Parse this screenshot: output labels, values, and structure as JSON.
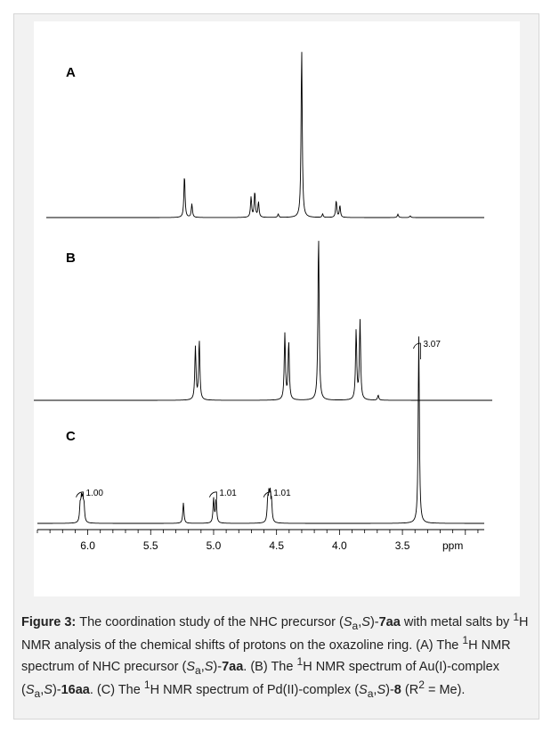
{
  "chart_data": [
    {
      "type": "line",
      "panel_label": "A",
      "x_range": [
        6.4,
        2.85
      ],
      "peaks": [
        {
          "ppm": 5.28,
          "height": 0.25
        },
        {
          "ppm": 5.22,
          "height": 0.08
        },
        {
          "ppm": 4.74,
          "height": 0.12
        },
        {
          "ppm": 4.71,
          "height": 0.15
        },
        {
          "ppm": 4.68,
          "height": 0.09
        },
        {
          "ppm": 4.52,
          "height": 0.02
        },
        {
          "ppm": 4.33,
          "height": 1.0
        },
        {
          "ppm": 4.16,
          "height": 0.02
        },
        {
          "ppm": 4.05,
          "height": 0.1
        },
        {
          "ppm": 4.02,
          "height": 0.07
        },
        {
          "ppm": 3.55,
          "height": 0.02
        },
        {
          "ppm": 3.45,
          "height": 0.01
        }
      ]
    },
    {
      "type": "line",
      "panel_label": "B",
      "x_range": [
        6.4,
        2.85
      ],
      "peaks": [
        {
          "ppm": 5.14,
          "height": 0.32
        },
        {
          "ppm": 5.11,
          "height": 0.36
        },
        {
          "ppm": 4.45,
          "height": 0.4
        },
        {
          "ppm": 4.42,
          "height": 0.35
        },
        {
          "ppm": 4.19,
          "height": 1.0
        },
        {
          "ppm": 3.9,
          "height": 0.42
        },
        {
          "ppm": 3.87,
          "height": 0.48
        },
        {
          "ppm": 3.73,
          "height": 0.03
        }
      ]
    },
    {
      "type": "line",
      "panel_label": "C",
      "x_range": [
        6.4,
        2.85
      ],
      "x_axis": {
        "ticks": [
          "6.0",
          "5.5",
          "5.0",
          "4.5",
          "4.0",
          "3.5"
        ],
        "unit": "ppm"
      },
      "peaks": [
        {
          "ppm": 6.06,
          "height": 0.09
        },
        {
          "ppm": 6.05,
          "height": 0.11
        },
        {
          "ppm": 6.04,
          "height": 0.11
        },
        {
          "ppm": 6.03,
          "height": 0.09
        },
        {
          "ppm": 5.24,
          "height": 0.11
        },
        {
          "ppm": 5.0,
          "height": 0.13
        },
        {
          "ppm": 4.98,
          "height": 0.13
        },
        {
          "ppm": 4.57,
          "height": 0.11
        },
        {
          "ppm": 4.56,
          "height": 0.13
        },
        {
          "ppm": 4.55,
          "height": 0.13
        },
        {
          "ppm": 4.54,
          "height": 0.1
        },
        {
          "ppm": 3.37,
          "height": 1.0
        }
      ],
      "integrals": [
        {
          "ppm": 6.05,
          "value": "1.00"
        },
        {
          "ppm": 4.99,
          "value": "1.01"
        },
        {
          "ppm": 4.56,
          "value": "1.01"
        },
        {
          "ppm": 3.37,
          "value": "3.07"
        }
      ]
    }
  ],
  "caption": {
    "figure_label": "Figure 3:",
    "text": "The coordination study of the NHC precursor (Sa,S)-7aa with metal salts by 1H NMR analysis of the chemical shifts of protons on the oxazoline ring. (A) The 1H NMR spectrum of NHC precursor (Sa,S)-7aa. (B) The 1H NMR spectrum of Au(I)-complex (Sa,S)-16aa. (C) The 1H NMR spectrum of Pd(II)-complex (Sa,S)-8 (R2 = Me)."
  },
  "colors": {
    "line": "#000000",
    "panel_background": "#f2f2f2",
    "plot_background": "#ffffff"
  }
}
